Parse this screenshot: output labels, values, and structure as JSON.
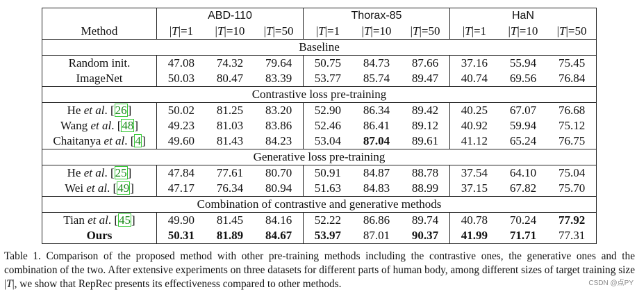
{
  "table": {
    "method_header": "Method",
    "datasets": [
      "ABD-110",
      "Thorax-85",
      "HaN"
    ],
    "size_labels": [
      "=1",
      "=10",
      "=50"
    ],
    "size_var": "T",
    "sections": [
      {
        "title": "Baseline",
        "rows": [
          {
            "method": "Random init.",
            "values": [
              "47.08",
              "74.32",
              "79.64",
              "50.75",
              "84.73",
              "87.66",
              "37.16",
              "55.94",
              "75.45"
            ]
          },
          {
            "method": "ImageNet",
            "values": [
              "50.03",
              "80.47",
              "83.39",
              "53.77",
              "85.74",
              "89.47",
              "40.74",
              "69.56",
              "76.84"
            ]
          }
        ]
      },
      {
        "title": "Contrastive loss pre-training",
        "rows": [
          {
            "author": "He",
            "etal": "et al",
            "cite": "26",
            "values": [
              "50.02",
              "81.25",
              "83.20",
              "52.90",
              "86.34",
              "89.42",
              "40.25",
              "67.07",
              "76.68"
            ]
          },
          {
            "author": "Wang",
            "etal": "et al",
            "cite": "48",
            "values": [
              "49.23",
              "81.03",
              "83.86",
              "52.46",
              "86.41",
              "89.12",
              "40.92",
              "59.94",
              "75.12"
            ]
          },
          {
            "author": "Chaitanya",
            "etal": "et al",
            "cite": "4",
            "values": [
              "49.60",
              "81.43",
              "84.23",
              "53.04",
              "87.04",
              "89.61",
              "41.12",
              "65.24",
              "76.75"
            ],
            "bold": [
              4
            ]
          }
        ]
      },
      {
        "title": "Generative loss pre-training",
        "rows": [
          {
            "author": "He",
            "etal": "et al",
            "cite": "25",
            "values": [
              "47.84",
              "77.61",
              "80.70",
              "50.91",
              "84.87",
              "88.78",
              "37.54",
              "64.10",
              "75.04"
            ]
          },
          {
            "author": "Wei",
            "etal": "et al",
            "cite": "49",
            "values": [
              "47.17",
              "76.34",
              "80.94",
              "51.63",
              "84.83",
              "88.99",
              "37.15",
              "67.82",
              "75.70"
            ]
          }
        ]
      },
      {
        "title": "Combination of contrastive and generative methods",
        "rows": [
          {
            "author": "Tian",
            "etal": "et al",
            "cite": "45",
            "values": [
              "49.90",
              "81.45",
              "84.16",
              "52.22",
              "86.86",
              "89.74",
              "40.78",
              "70.24",
              "77.92"
            ],
            "bold": [
              8
            ]
          },
          {
            "method": "Ours",
            "method_bold": true,
            "values": [
              "50.31",
              "81.89",
              "84.67",
              "53.97",
              "87.01",
              "90.37",
              "41.99",
              "71.71",
              "77.31"
            ],
            "bold": [
              0,
              1,
              2,
              3,
              5,
              6,
              7
            ]
          }
        ]
      }
    ]
  },
  "caption": {
    "p1": "Table 1. Comparison of the proposed method with other pre-training methods including the contrastive ones, the generative ones and the combination of the two. After extensive experiments on three datasets for different parts of human body, among different sizes of target training size ",
    "var": "T",
    "p2": ", we show that RepRec presents its effectiveness compared to other methods."
  },
  "watermark": "CSDN @点PY"
}
